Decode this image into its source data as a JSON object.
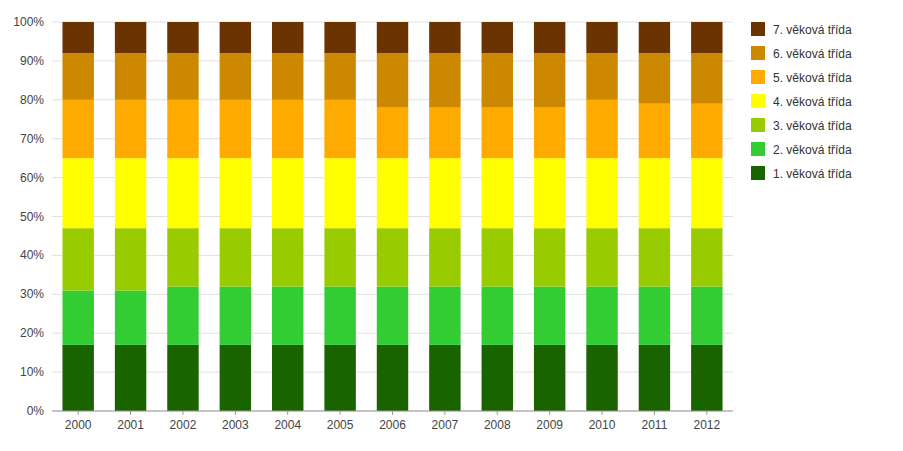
{
  "chart_data": {
    "type": "bar",
    "stacked": true,
    "categories": [
      "2000",
      "2001",
      "2002",
      "2003",
      "2004",
      "2005",
      "2006",
      "2007",
      "2008",
      "2009",
      "2010",
      "2011",
      "2012"
    ],
    "series": [
      {
        "name": "1. věková třída",
        "color": "#1a6400",
        "values": [
          17,
          17,
          17,
          17,
          17,
          17,
          17,
          17,
          17,
          17,
          17,
          17,
          17
        ]
      },
      {
        "name": "2. věková třída",
        "color": "#33cc33",
        "values": [
          14,
          14,
          15,
          15,
          15,
          15,
          15,
          15,
          15,
          15,
          15,
          15,
          15
        ]
      },
      {
        "name": "3. věková třída",
        "color": "#99cc00",
        "values": [
          16,
          16,
          15,
          15,
          15,
          15,
          15,
          15,
          15,
          15,
          15,
          15,
          15
        ]
      },
      {
        "name": "4. věková třída",
        "color": "#ffff00",
        "values": [
          18,
          18,
          18,
          18,
          18,
          18,
          18,
          18,
          18,
          18,
          18,
          18,
          18
        ]
      },
      {
        "name": "5. věková třída",
        "color": "#ffaa00",
        "values": [
          15,
          15,
          15,
          15,
          15,
          15,
          13,
          13,
          13,
          13,
          15,
          14,
          14
        ]
      },
      {
        "name": "6. věková třída",
        "color": "#cc8800",
        "values": [
          12,
          12,
          12,
          12,
          12,
          12,
          14,
          14,
          14,
          14,
          12,
          13,
          13
        ]
      },
      {
        "name": "7. věková třída",
        "color": "#6b3300",
        "values": [
          8,
          8,
          8,
          8,
          8,
          8,
          8,
          8,
          8,
          8,
          8,
          8,
          8
        ]
      }
    ],
    "ylim": [
      0,
      100
    ],
    "yticks": [
      {
        "value": 0,
        "label": "0%"
      },
      {
        "value": 10,
        "label": "10%"
      },
      {
        "value": 20,
        "label": "20%"
      },
      {
        "value": 30,
        "label": "30%"
      },
      {
        "value": 40,
        "label": "40%"
      },
      {
        "value": 50,
        "label": "50%"
      },
      {
        "value": 60,
        "label": "60%"
      },
      {
        "value": 70,
        "label": "70%"
      },
      {
        "value": 80,
        "label": "80%"
      },
      {
        "value": 90,
        "label": "90%"
      },
      {
        "value": 100,
        "label": "100%"
      }
    ],
    "grid": true,
    "legend": "right"
  }
}
